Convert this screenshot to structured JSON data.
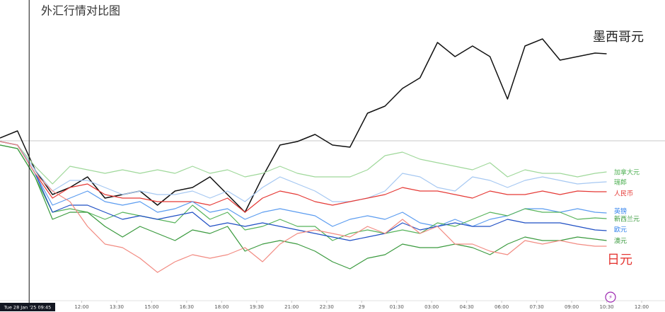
{
  "chart_data": {
    "type": "line",
    "title": "外汇行情对比图",
    "x": [
      0,
      0.75,
      1.5,
      2.25,
      3,
      3.75,
      4.5,
      5.25,
      6,
      6.75,
      7.5,
      8.25,
      9,
      9.75,
      10.5,
      11.25,
      12,
      12.75,
      13.5,
      14.25,
      15,
      15.75,
      16.5,
      17.25,
      18,
      18.75,
      19.5,
      20.25,
      21,
      21.75,
      22.5,
      23.25,
      24,
      24.75,
      25.5,
      26
    ],
    "xlim": [
      0,
      28.5
    ],
    "xticks": [
      {
        "value": 3.5,
        "label": "12:00"
      },
      {
        "value": 5,
        "label": "13:30"
      },
      {
        "value": 6.5,
        "label": "15:00"
      },
      {
        "value": 8,
        "label": "16:30"
      },
      {
        "value": 9.5,
        "label": "18:00"
      },
      {
        "value": 11,
        "label": "19:30"
      },
      {
        "value": 12.5,
        "label": "21:00"
      },
      {
        "value": 14,
        "label": "22:30"
      },
      {
        "value": 15.5,
        "label": "29"
      },
      {
        "value": 17,
        "label": "01:30"
      },
      {
        "value": 18.5,
        "label": "03:00"
      },
      {
        "value": 20,
        "label": "04:30"
      },
      {
        "value": 21.5,
        "label": "06:00"
      },
      {
        "value": 23,
        "label": "07:30"
      },
      {
        "value": 24.5,
        "label": "09:00"
      },
      {
        "value": 26,
        "label": "10:30"
      },
      {
        "value": 27.5,
        "label": "12:00"
      }
    ],
    "cursor": {
      "value": 1.25,
      "label": "Tue 28 Jan '25  09:45"
    },
    "ylim": [
      -2.2,
      2.0
    ],
    "series": [
      {
        "name": "墨西哥元",
        "color": "#111111",
        "values": [
          0.05,
          0.15,
          -0.4,
          -0.75,
          -0.65,
          -0.5,
          -0.8,
          -0.75,
          -0.7,
          -0.9,
          -0.7,
          -0.65,
          -0.5,
          -0.75,
          -1,
          -0.5,
          -0.05,
          0,
          0.1,
          -0.05,
          -0.08,
          0.4,
          0.5,
          0.75,
          0.9,
          1.4,
          1.2,
          1.35,
          1.2,
          0.6,
          1.35,
          1.45,
          1.15,
          1.2,
          1.25,
          1.24
        ]
      },
      {
        "name": "加拿大元",
        "color": "#9fd89a",
        "values": [
          0,
          -0.05,
          -0.35,
          -0.6,
          -0.35,
          -0.4,
          -0.45,
          -0.4,
          -0.45,
          -0.4,
          -0.45,
          -0.35,
          -0.45,
          -0.4,
          -0.5,
          -0.45,
          -0.35,
          -0.45,
          -0.5,
          -0.5,
          -0.5,
          -0.4,
          -0.2,
          -0.15,
          -0.25,
          -0.3,
          -0.35,
          -0.4,
          -0.3,
          -0.5,
          -0.4,
          -0.45,
          -0.45,
          -0.5,
          -0.45,
          -0.43
        ]
      },
      {
        "name": "瑞郎",
        "color": "#a6c8f2",
        "values": [
          0,
          -0.05,
          -0.4,
          -0.7,
          -0.55,
          -0.55,
          -0.65,
          -0.75,
          -0.7,
          -0.75,
          -0.75,
          -0.7,
          -0.8,
          -0.7,
          -0.85,
          -0.65,
          -0.5,
          -0.6,
          -0.7,
          -0.85,
          -0.85,
          -0.8,
          -0.7,
          -0.45,
          -0.5,
          -0.65,
          -0.7,
          -0.5,
          -0.55,
          -0.65,
          -0.55,
          -0.5,
          -0.55,
          -0.6,
          -0.58,
          -0.57
        ]
      },
      {
        "name": "人民币",
        "color": "#e53935",
        "values": [
          0,
          -0.05,
          -0.45,
          -0.8,
          -0.65,
          -0.6,
          -0.75,
          -0.8,
          -0.8,
          -0.85,
          -0.85,
          -0.85,
          -0.9,
          -0.8,
          -1,
          -0.8,
          -0.7,
          -0.75,
          -0.85,
          -0.9,
          -0.85,
          -0.8,
          -0.75,
          -0.65,
          -0.7,
          -0.7,
          -0.75,
          -0.8,
          -0.7,
          -0.75,
          -0.75,
          -0.7,
          -0.75,
          -0.7,
          -0.71,
          -0.71
        ]
      },
      {
        "name": "英镑",
        "color": "#5b9cf0",
        "values": [
          0,
          -0.05,
          -0.45,
          -0.9,
          -0.8,
          -0.7,
          -0.85,
          -0.9,
          -0.85,
          -1,
          -0.95,
          -0.85,
          -1,
          -0.95,
          -1.1,
          -1,
          -0.95,
          -1,
          -1.05,
          -1.2,
          -1.1,
          -1.05,
          -1.1,
          -1,
          -1.15,
          -1.2,
          -1.1,
          -1.2,
          -1.1,
          -1.05,
          -0.95,
          -0.95,
          -1,
          -0.95,
          -1,
          -1.01
        ]
      },
      {
        "name": "新西兰元",
        "color": "#56b35a",
        "values": [
          -0.05,
          -0.1,
          -0.5,
          -1,
          -0.95,
          -1,
          -1.1,
          -1,
          -1.05,
          -1.1,
          -1.15,
          -0.9,
          -1.1,
          -1,
          -1.25,
          -1.2,
          -1.1,
          -1.2,
          -1.2,
          -1.4,
          -1.3,
          -1.25,
          -1.3,
          -1.25,
          -1.3,
          -1.15,
          -1.2,
          -1.1,
          -1,
          -1.05,
          -0.95,
          -1,
          -1,
          -1.1,
          -1.08,
          -1.09
        ]
      },
      {
        "name": "欧元",
        "color": "#1f4fc4",
        "values": [
          0,
          -0.05,
          -0.45,
          -1,
          -0.9,
          -0.9,
          -1,
          -1.1,
          -1.05,
          -1.1,
          -1.05,
          -1,
          -1.2,
          -1.15,
          -1.2,
          -1.15,
          -1.2,
          -1.25,
          -1.3,
          -1.35,
          -1.4,
          -1.35,
          -1.3,
          -1.15,
          -1.25,
          -1.2,
          -1.15,
          -1.2,
          -1.2,
          -1.1,
          -1.15,
          -1.15,
          -1.15,
          -1.2,
          -1.25,
          -1.26
        ]
      },
      {
        "name": "澳元",
        "color": "#3a9a3e",
        "values": [
          -0.05,
          -0.1,
          -0.5,
          -1.1,
          -1,
          -1,
          -1.2,
          -1.35,
          -1.2,
          -1.3,
          -1.4,
          -1.25,
          -1.3,
          -1.2,
          -1.55,
          -1.45,
          -1.4,
          -1.45,
          -1.55,
          -1.7,
          -1.8,
          -1.65,
          -1.6,
          -1.45,
          -1.5,
          -1.5,
          -1.45,
          -1.5,
          -1.6,
          -1.45,
          -1.35,
          -1.4,
          -1.4,
          -1.35,
          -1.38,
          -1.4
        ]
      },
      {
        "name": "日元",
        "color": "#f28b82",
        "values": [
          0,
          -0.05,
          -0.45,
          -0.7,
          -0.85,
          -1.2,
          -1.45,
          -1.5,
          -1.65,
          -1.85,
          -1.7,
          -1.6,
          -1.65,
          -1.6,
          -1.5,
          -1.7,
          -1.45,
          -1.3,
          -1.25,
          -1.3,
          -1.35,
          -1.2,
          -1.3,
          -1.1,
          -1.3,
          -1.2,
          -1.45,
          -1.45,
          -1.55,
          -1.6,
          -1.4,
          -1.45,
          -1.4,
          -1.45,
          -1.48,
          -1.48
        ]
      }
    ]
  }
}
